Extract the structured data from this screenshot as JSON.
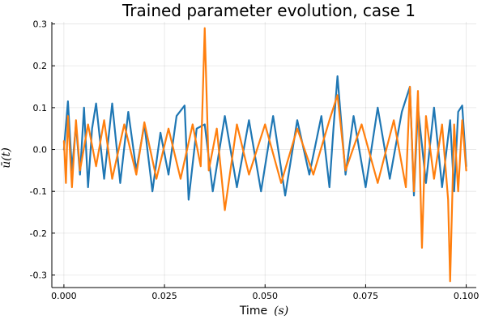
{
  "chart_data": {
    "type": "line",
    "title": "Trained parameter evolution, case 1",
    "xlabel": "Time",
    "xlabel_math": "(s)",
    "ylabel": "ū(t)",
    "xlim": [
      -0.003,
      0.1025
    ],
    "ylim": [
      -0.33,
      0.305
    ],
    "x_ticks": [
      0.0,
      0.025,
      0.05,
      0.075,
      0.1
    ],
    "x_tick_labels": [
      "0.000",
      "0.025",
      "0.050",
      "0.075",
      "0.100"
    ],
    "y_ticks": [
      -0.3,
      -0.2,
      -0.1,
      0.0,
      0.1,
      0.2,
      0.3
    ],
    "y_tick_labels": [
      "-0.3",
      "-0.2",
      "-0.1",
      "0.0",
      "0.1",
      "0.2",
      "0.3"
    ],
    "grid": true,
    "legend": "none",
    "series": [
      {
        "color": "#1f77b4",
        "x": [
          0.0,
          0.001,
          0.002,
          0.003,
          0.004,
          0.005,
          0.006,
          0.007,
          0.008,
          0.01,
          0.012,
          0.014,
          0.016,
          0.018,
          0.02,
          0.022,
          0.024,
          0.026,
          0.028,
          0.03,
          0.031,
          0.033,
          0.035,
          0.037,
          0.04,
          0.043,
          0.046,
          0.049,
          0.052,
          0.055,
          0.058,
          0.061,
          0.064,
          0.066,
          0.067,
          0.068,
          0.07,
          0.072,
          0.075,
          0.078,
          0.081,
          0.084,
          0.086,
          0.087,
          0.088,
          0.09,
          0.092,
          0.094,
          0.096,
          0.097,
          0.098,
          0.099,
          0.1
        ],
        "y": [
          0.0,
          0.115,
          -0.05,
          0.06,
          -0.06,
          0.1,
          -0.09,
          0.05,
          0.11,
          -0.07,
          0.11,
          -0.08,
          0.09,
          -0.05,
          0.06,
          -0.1,
          0.04,
          -0.06,
          0.08,
          0.105,
          -0.12,
          0.05,
          0.06,
          -0.1,
          0.08,
          -0.09,
          0.07,
          -0.1,
          0.08,
          -0.11,
          0.07,
          -0.06,
          0.08,
          -0.09,
          0.05,
          0.175,
          -0.06,
          0.08,
          -0.09,
          0.1,
          -0.07,
          0.09,
          0.15,
          -0.11,
          0.1,
          -0.08,
          0.1,
          -0.09,
          0.07,
          -0.1,
          0.09,
          0.105,
          -0.04
        ]
      },
      {
        "color": "#ff7f0e",
        "x": [
          0.0,
          0.0005,
          0.001,
          0.002,
          0.003,
          0.004,
          0.006,
          0.008,
          0.01,
          0.012,
          0.015,
          0.018,
          0.02,
          0.023,
          0.026,
          0.029,
          0.032,
          0.034,
          0.035,
          0.036,
          0.038,
          0.04,
          0.043,
          0.046,
          0.05,
          0.054,
          0.058,
          0.062,
          0.066,
          0.068,
          0.07,
          0.074,
          0.078,
          0.082,
          0.085,
          0.086,
          0.087,
          0.088,
          0.089,
          0.09,
          0.092,
          0.094,
          0.0955,
          0.096,
          0.097,
          0.098,
          0.099,
          0.1
        ],
        "y": [
          0.02,
          -0.08,
          0.08,
          -0.09,
          0.07,
          -0.05,
          0.06,
          -0.04,
          0.07,
          -0.07,
          0.06,
          -0.06,
          0.065,
          -0.07,
          0.05,
          -0.07,
          0.06,
          -0.04,
          0.29,
          -0.05,
          0.05,
          -0.145,
          0.06,
          -0.06,
          0.06,
          -0.08,
          0.05,
          -0.06,
          0.07,
          0.13,
          -0.05,
          0.06,
          -0.08,
          0.07,
          -0.09,
          0.15,
          -0.1,
          0.14,
          -0.235,
          0.08,
          -0.07,
          0.06,
          -0.12,
          -0.315,
          0.06,
          -0.1,
          0.07,
          -0.05
        ]
      }
    ]
  }
}
